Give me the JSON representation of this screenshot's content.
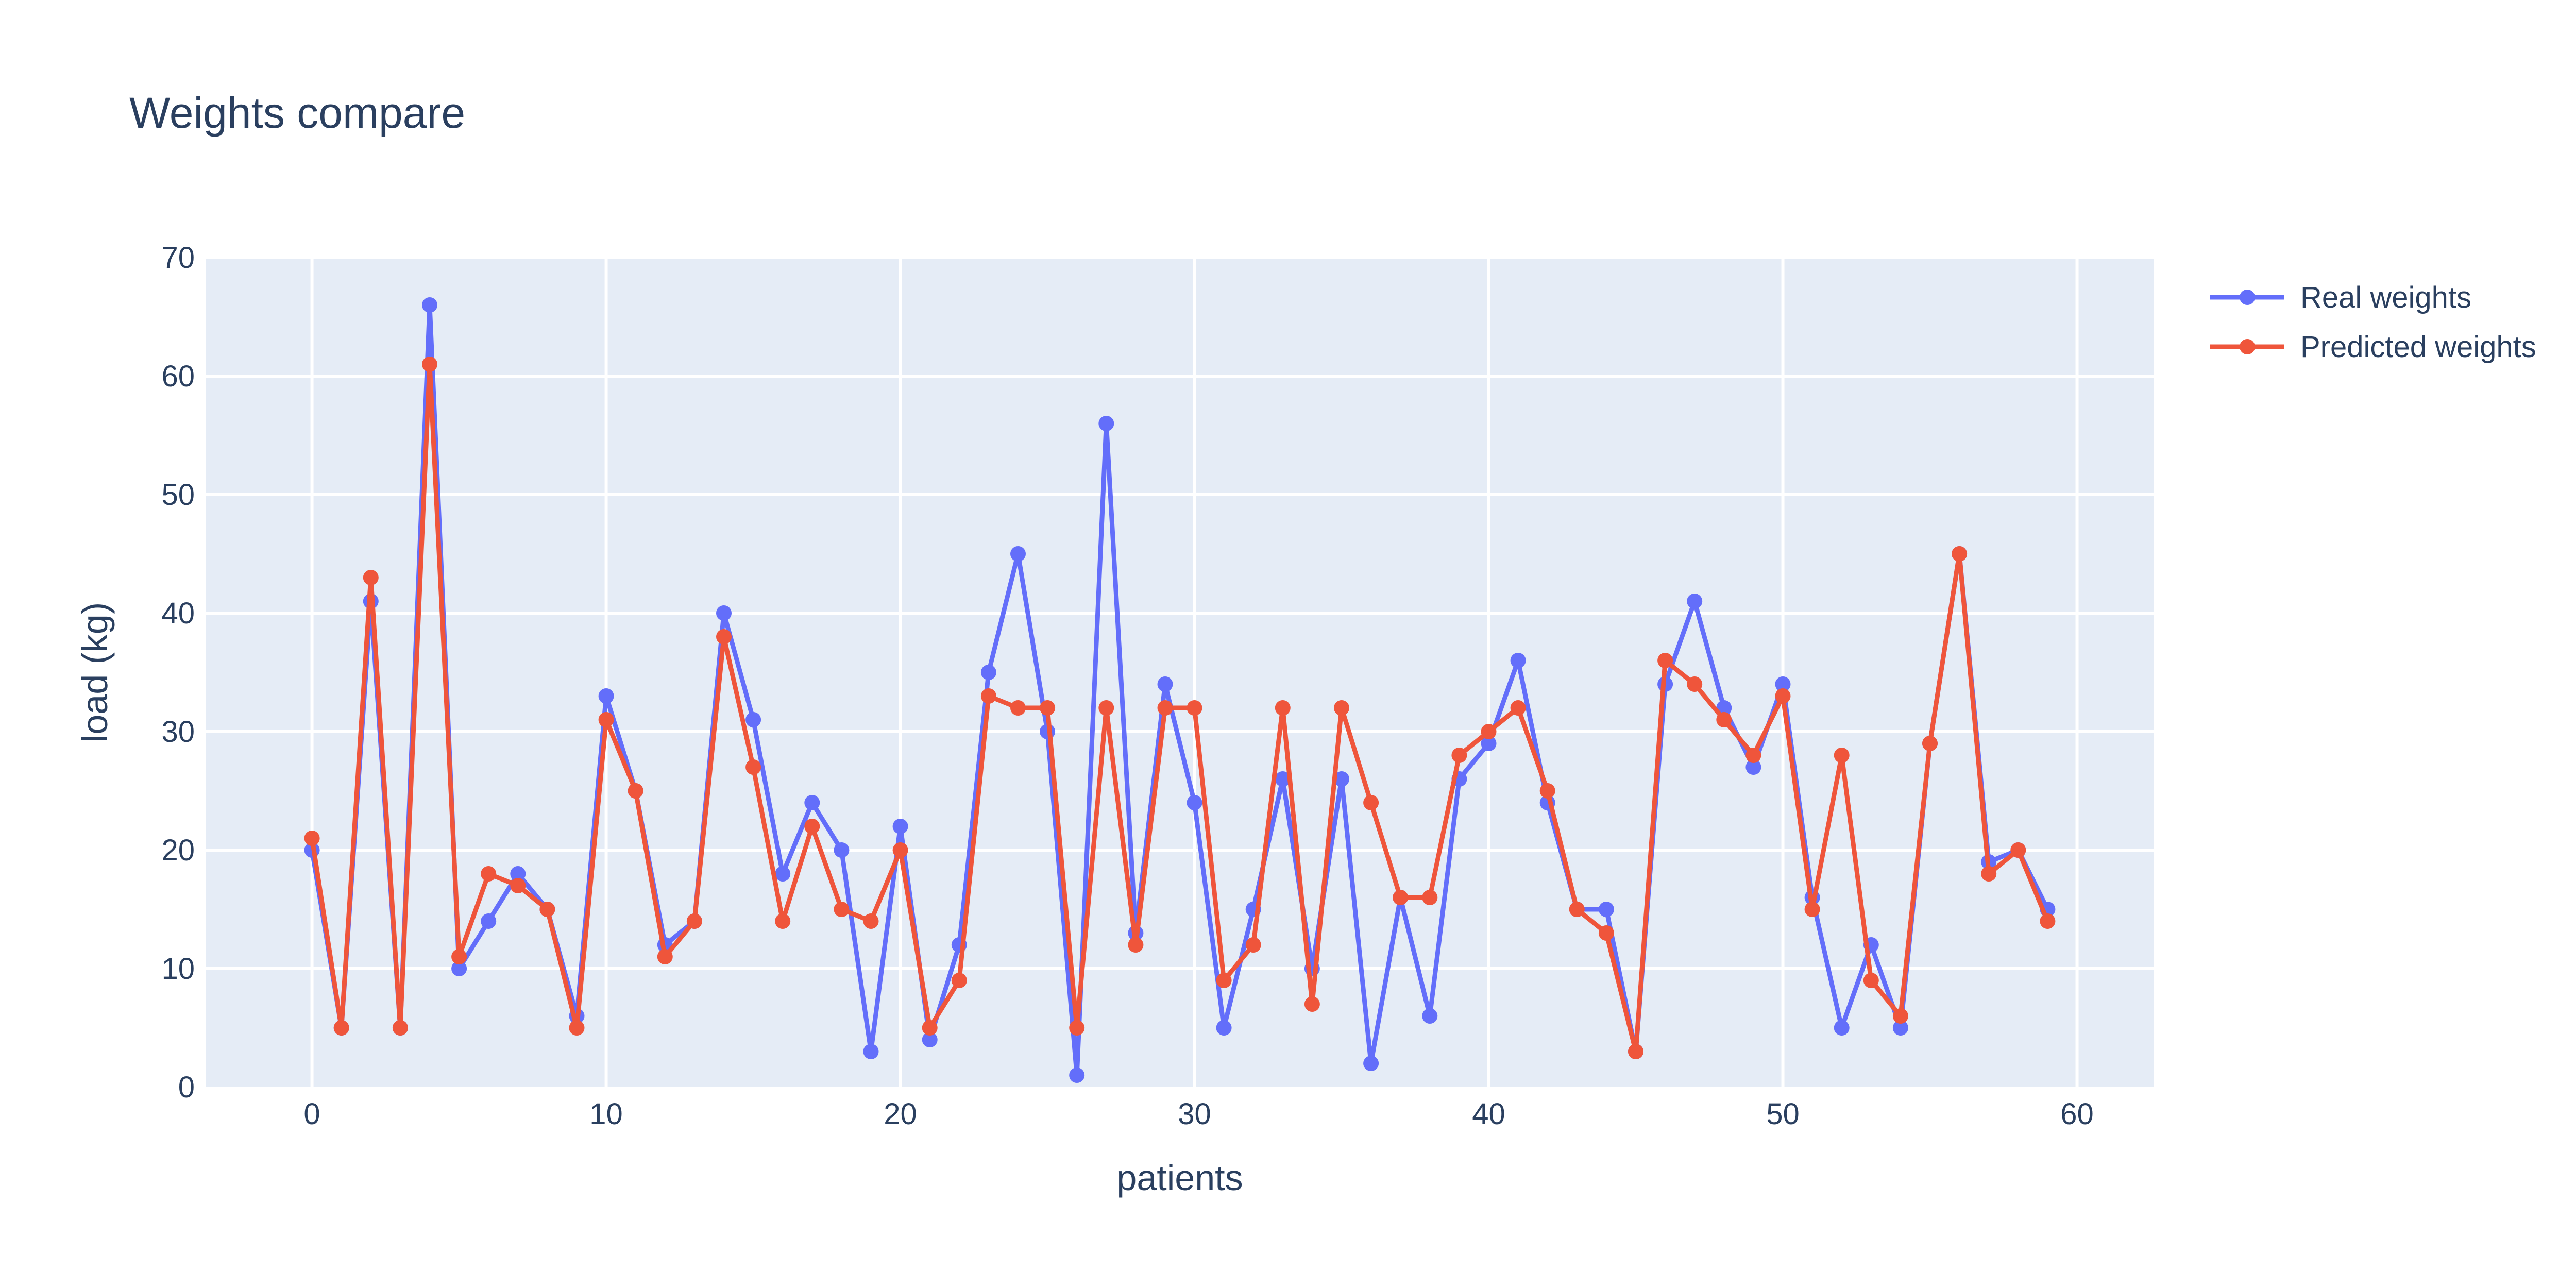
{
  "chart_data": {
    "type": "line",
    "title": "Weights compare",
    "xlabel": "patients",
    "ylabel": "load (kg)",
    "xlim": [
      -3.6,
      62.6
    ],
    "ylim": [
      0,
      70
    ],
    "xticks": [
      0,
      10,
      20,
      30,
      40,
      50,
      60
    ],
    "yticks": [
      0,
      10,
      20,
      30,
      40,
      50,
      60,
      70
    ],
    "grid": true,
    "legend_position": "top-right",
    "x": [
      0,
      1,
      2,
      3,
      4,
      5,
      6,
      7,
      8,
      9,
      10,
      11,
      12,
      13,
      14,
      15,
      16,
      17,
      18,
      19,
      20,
      21,
      22,
      23,
      24,
      25,
      26,
      27,
      28,
      29,
      30,
      31,
      32,
      33,
      34,
      35,
      36,
      37,
      38,
      39,
      40,
      41,
      42,
      43,
      44,
      45,
      46,
      47,
      48,
      49,
      50,
      51,
      52,
      53,
      54,
      55,
      56,
      57,
      58,
      59
    ],
    "series": [
      {
        "name": "Real weights",
        "color": "#636efa",
        "values": [
          20,
          5,
          41,
          5,
          66,
          10,
          14,
          18,
          15,
          6,
          33,
          25,
          12,
          14,
          40,
          31,
          18,
          24,
          20,
          3,
          22,
          4,
          12,
          35,
          45,
          30,
          1,
          56,
          13,
          34,
          24,
          5,
          15,
          26,
          10,
          26,
          2,
          16,
          6,
          26,
          29,
          36,
          24,
          15,
          15,
          3,
          34,
          41,
          32,
          27,
          34,
          16,
          5,
          12,
          5,
          29,
          45,
          19,
          20,
          15
        ]
      },
      {
        "name": "Predicted weights",
        "color": "#ef553b",
        "values": [
          21,
          5,
          43,
          5,
          61,
          11,
          18,
          17,
          15,
          5,
          31,
          25,
          11,
          14,
          38,
          27,
          14,
          22,
          15,
          14,
          20,
          5,
          9,
          33,
          32,
          32,
          5,
          32,
          12,
          32,
          32,
          9,
          12,
          32,
          7,
          32,
          24,
          16,
          16,
          28,
          30,
          32,
          25,
          15,
          13,
          3,
          36,
          34,
          31,
          28,
          33,
          15,
          28,
          9,
          6,
          29,
          45,
          18,
          20,
          14
        ]
      }
    ]
  },
  "plot_bg": "#e5ecf6",
  "grid_color": "#ffffff",
  "text_color": "#2a3f5f"
}
